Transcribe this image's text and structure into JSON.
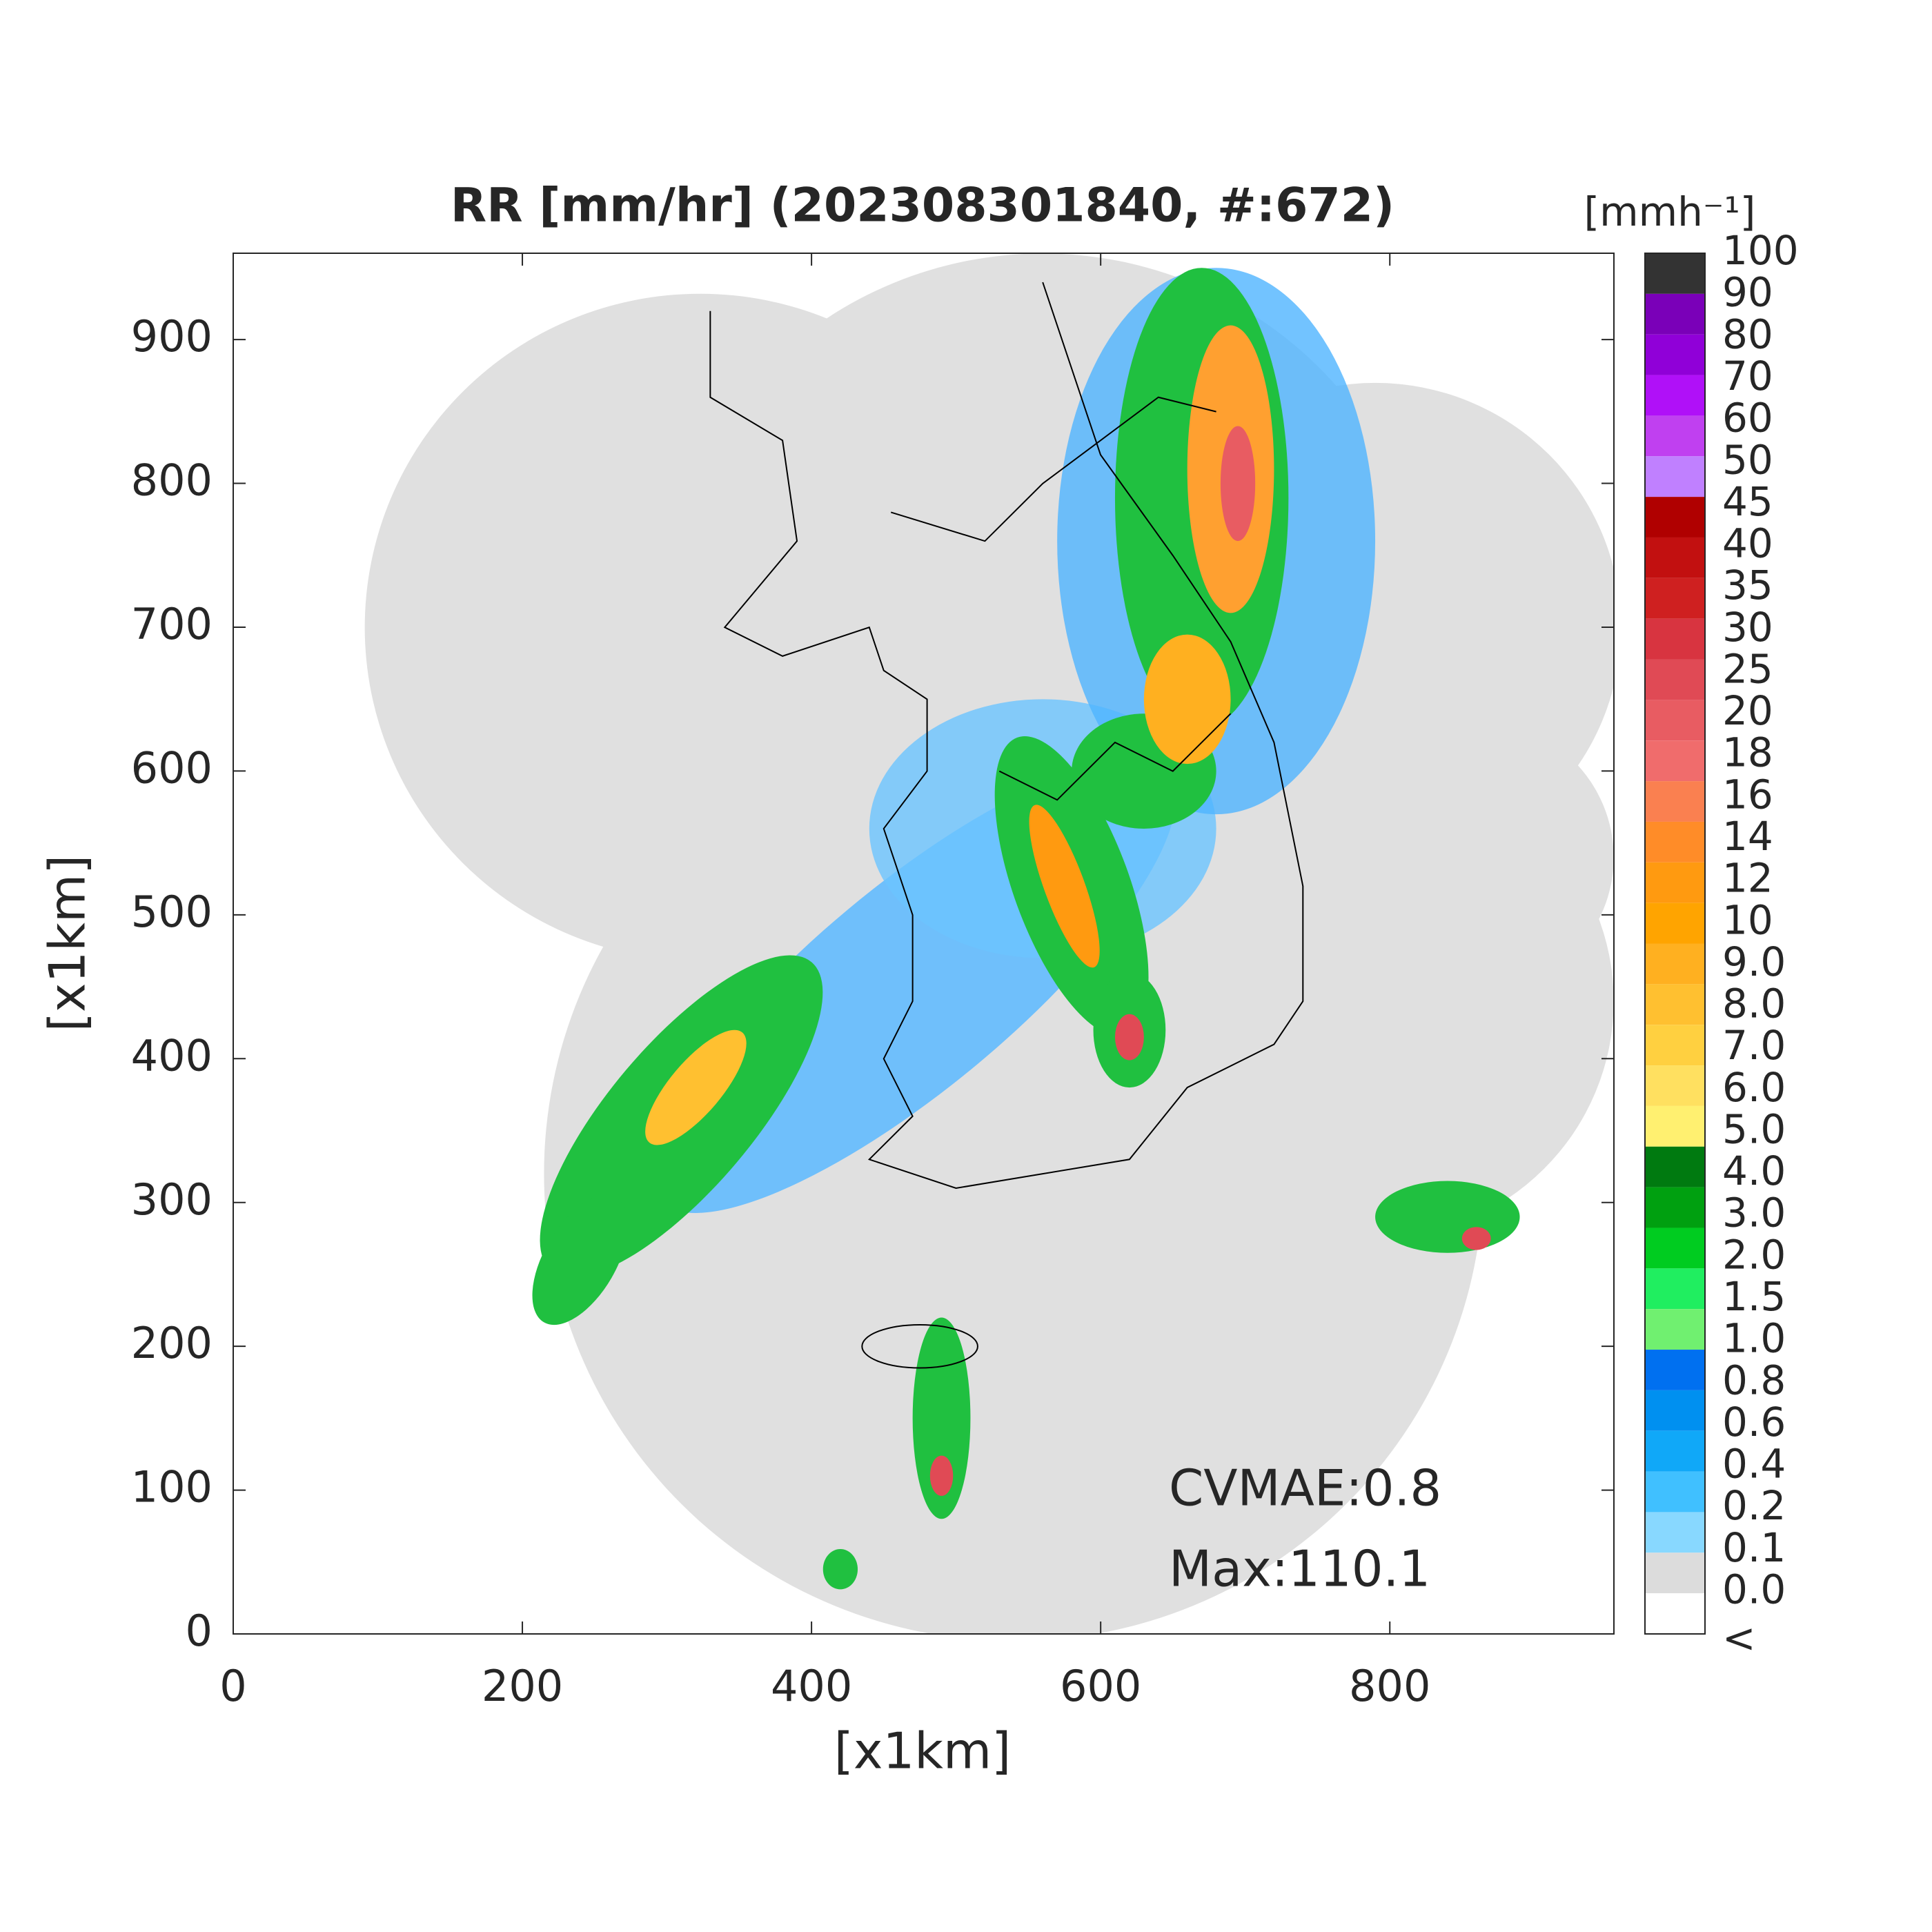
{
  "title": "RR [mm/hr] (202308301840, #:672)",
  "x_axis": {
    "label": "[x1km]",
    "range": [
      0,
      955
    ],
    "ticks": [
      0,
      200,
      400,
      600,
      800
    ]
  },
  "y_axis": {
    "label": "[x1km]",
    "range": [
      0,
      960
    ],
    "ticks": [
      0,
      100,
      200,
      300,
      400,
      500,
      600,
      700,
      800,
      900
    ]
  },
  "colorbar": {
    "unit": "[mmh⁻¹]",
    "ticks": [
      "100",
      "90",
      "80",
      "70",
      "60",
      "50",
      "45",
      "40",
      "35",
      "30",
      "25",
      "20",
      "18",
      "16",
      "14",
      "12",
      "10",
      "9.0",
      "8.0",
      "7.0",
      "6.0",
      "5.0",
      "4.0",
      "3.0",
      "2.0",
      "1.5",
      "1.0",
      "0.8",
      "0.6",
      "0.4",
      "0.2",
      "0.1",
      "0.0",
      "<"
    ],
    "colors": [
      "#333333",
      "#7a00b8",
      "#9000d8",
      "#b010f8",
      "#c040f0",
      "#c080ff",
      "#b00000",
      "#c21010",
      "#cf2020",
      "#d83440",
      "#e04a55",
      "#e85c62",
      "#f06c6c",
      "#fa8050",
      "#ff8c28",
      "#ff9a10",
      "#ffa400",
      "#ffb020",
      "#ffc030",
      "#ffd040",
      "#ffe060",
      "#fff070",
      "#007a10",
      "#00a010",
      "#00cc20",
      "#20ee60",
      "#70f070",
      "#0070f0",
      "#0090f0",
      "#10a8f8",
      "#40c0ff",
      "#88d8ff",
      "#dcdcdc",
      "#ffffff"
    ]
  },
  "annotations": [
    "CVMAE:0.8",
    "Max:110.1"
  ]
}
